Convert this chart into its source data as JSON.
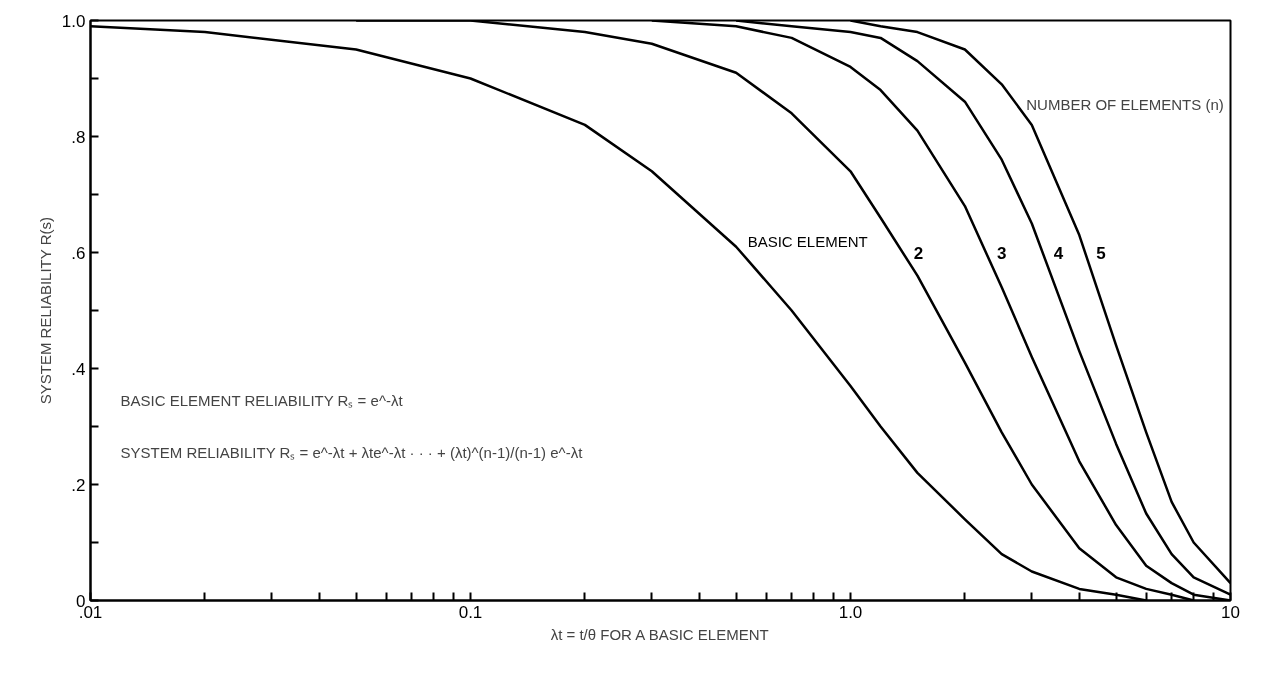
{
  "chart_data": {
    "type": "line",
    "xlabel": "λt = t/θ FOR A BASIC ELEMENT",
    "ylabel": "SYSTEM RELIABILITY R(s)",
    "log": "x",
    "xlim": [
      0.01,
      10
    ],
    "xticks": [
      {
        "value": 0.01,
        "label": ".01"
      },
      {
        "value": 0.02,
        "label": null
      },
      {
        "value": 0.03,
        "label": null
      },
      {
        "value": 0.04,
        "label": null
      },
      {
        "value": 0.05,
        "label": null
      },
      {
        "value": 0.06,
        "label": null
      },
      {
        "value": 0.07,
        "label": null
      },
      {
        "value": 0.08,
        "label": null
      },
      {
        "value": 0.09,
        "label": null
      },
      {
        "value": 0.1,
        "label": "0.1"
      },
      {
        "value": 0.2,
        "label": null
      },
      {
        "value": 0.3,
        "label": null
      },
      {
        "value": 0.4,
        "label": null
      },
      {
        "value": 0.5,
        "label": null
      },
      {
        "value": 0.6,
        "label": null
      },
      {
        "value": 0.7,
        "label": null
      },
      {
        "value": 0.8,
        "label": null
      },
      {
        "value": 0.9,
        "label": null
      },
      {
        "value": 1,
        "label": "1.0"
      },
      {
        "value": 2,
        "label": null
      },
      {
        "value": 3,
        "label": null
      },
      {
        "value": 4,
        "label": null
      },
      {
        "value": 5,
        "label": null
      },
      {
        "value": 6,
        "label": null
      },
      {
        "value": 7,
        "label": null
      },
      {
        "value": 8,
        "label": null
      },
      {
        "value": 9,
        "label": null
      },
      {
        "value": 10,
        "label": "10"
      }
    ],
    "ylim": [
      0,
      1
    ],
    "yticks": [
      0,
      {
        "value": 0.1,
        "label": null
      },
      {
        "value": 0.2,
        "label": ".2"
      },
      {
        "value": 0.3,
        "label": null
      },
      {
        "value": 0.4,
        "label": ".4"
      },
      {
        "value": 0.5,
        "label": null
      },
      {
        "value": 0.6,
        "label": ".6"
      },
      {
        "value": 0.7,
        "label": null
      },
      {
        "value": 0.8,
        "label": ".8"
      },
      {
        "value": 0.9,
        "label": null
      },
      {
        "value": 1,
        "label": "1.0"
      }
    ],
    "grid": false,
    "series": [
      {
        "name": "BASIC ELEMENT",
        "color": "#000000",
        "x": [
          0.01,
          0.02,
          0.05,
          0.1,
          0.2,
          0.3,
          0.5,
          0.7,
          1,
          1.2,
          1.5,
          2,
          2.5,
          3,
          4,
          5,
          6
        ],
        "values": [
          0.99,
          0.98,
          0.95,
          0.9,
          0.82,
          0.74,
          0.61,
          0.5,
          0.37,
          0.3,
          0.22,
          0.14,
          0.08,
          0.05,
          0.02,
          0.01,
          0
        ]
      },
      {
        "name": "2",
        "color": "#000000",
        "x": [
          0.05,
          0.1,
          0.2,
          0.3,
          0.5,
          0.7,
          1,
          1.2,
          1.5,
          2,
          2.5,
          3,
          4,
          5,
          6,
          7,
          8
        ],
        "values": [
          1,
          1,
          0.98,
          0.96,
          0.91,
          0.84,
          0.74,
          0.66,
          0.56,
          0.41,
          0.29,
          0.2,
          0.09,
          0.04,
          0.02,
          0.01,
          0
        ]
      },
      {
        "name": "3",
        "color": "#000000",
        "x": [
          0.3,
          0.5,
          0.7,
          1,
          1.2,
          1.5,
          2,
          2.5,
          3,
          4,
          5,
          6,
          7,
          8,
          10
        ],
        "values": [
          1,
          0.99,
          0.97,
          0.92,
          0.88,
          0.81,
          0.68,
          0.54,
          0.42,
          0.24,
          0.13,
          0.06,
          0.03,
          0.01,
          0
        ]
      },
      {
        "name": "4",
        "color": "#000000",
        "x": [
          0.5,
          0.7,
          1,
          1.2,
          1.5,
          2,
          2.5,
          3,
          4,
          5,
          6,
          7,
          8,
          10
        ],
        "values": [
          1,
          0.99,
          0.98,
          0.97,
          0.93,
          0.86,
          0.76,
          0.65,
          0.43,
          0.27,
          0.15,
          0.08,
          0.04,
          0.01
        ]
      },
      {
        "name": "5",
        "color": "#000000",
        "x": [
          1,
          1.2,
          1.5,
          2,
          2.5,
          3,
          4,
          5,
          6,
          7,
          8,
          10
        ],
        "values": [
          1,
          0.99,
          0.98,
          0.95,
          0.89,
          0.82,
          0.63,
          0.44,
          0.29,
          0.17,
          0.1,
          0.03
        ]
      }
    ],
    "annotations": [
      "NUMBER OF ELEMENTS (n)",
      "BASIC ELEMENT RELIABILITY   Rₛ = e^-λt",
      "SYSTEM RELIABILITY   Rₛ = e^-λt + λte^-λt · · · + (λt)^(n-1)/(n-1) e^-λt"
    ]
  }
}
